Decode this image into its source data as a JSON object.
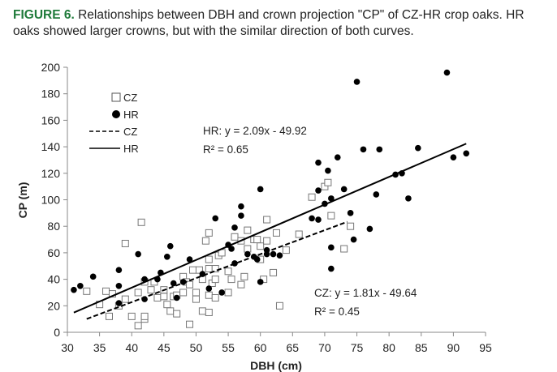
{
  "caption": {
    "label": "FIGURE 6.",
    "text": "Relationships between DBH and crown projection \"CP\" of CZ-HR crop oaks. HR oaks showed larger crowns, but with the similar direction of both curves."
  },
  "chart_data": {
    "type": "scatter",
    "xlabel": "DBH (cm)",
    "ylabel": "CP (m)",
    "xlim": [
      30,
      95
    ],
    "ylim": [
      0,
      200
    ],
    "xticks": [
      30,
      35,
      40,
      45,
      50,
      55,
      60,
      65,
      70,
      75,
      80,
      85,
      90,
      95
    ],
    "yticks": [
      0,
      20,
      40,
      60,
      80,
      100,
      120,
      140,
      160,
      180,
      200
    ],
    "grid": false,
    "legend_placement": "top-left",
    "legend": [
      "CZ",
      "HR",
      "CZ",
      "HR"
    ],
    "series": [
      {
        "name": "CZ",
        "marker": "open-square",
        "points": [
          [
            33,
            31
          ],
          [
            35,
            21
          ],
          [
            36,
            31
          ],
          [
            36.5,
            12
          ],
          [
            37,
            29
          ],
          [
            38,
            20
          ],
          [
            39,
            25
          ],
          [
            39,
            67
          ],
          [
            40,
            12
          ],
          [
            41,
            5
          ],
          [
            41,
            30
          ],
          [
            41.5,
            83
          ],
          [
            42,
            10
          ],
          [
            42,
            38
          ],
          [
            42,
            12
          ],
          [
            43,
            32
          ],
          [
            43.5,
            38
          ],
          [
            44,
            26
          ],
          [
            45,
            27
          ],
          [
            45,
            32
          ],
          [
            45.5,
            21
          ],
          [
            46,
            16
          ],
          [
            46.5,
            27
          ],
          [
            47,
            14
          ],
          [
            47,
            28
          ],
          [
            48,
            30
          ],
          [
            48,
            42
          ],
          [
            48.5,
            38
          ],
          [
            49,
            6
          ],
          [
            49,
            36
          ],
          [
            49.5,
            47
          ],
          [
            50,
            30
          ],
          [
            50,
            25
          ],
          [
            50.5,
            47
          ],
          [
            51,
            40
          ],
          [
            51,
            16
          ],
          [
            51.5,
            69
          ],
          [
            52,
            75
          ],
          [
            52,
            48
          ],
          [
            52,
            55
          ],
          [
            52,
            28
          ],
          [
            52,
            15
          ],
          [
            52.5,
            37
          ],
          [
            53,
            48
          ],
          [
            53,
            26
          ],
          [
            53,
            40
          ],
          [
            53.5,
            58
          ],
          [
            54,
            60
          ],
          [
            55,
            46
          ],
          [
            55,
            30
          ],
          [
            55.5,
            40
          ],
          [
            56,
            72
          ],
          [
            57,
            69
          ],
          [
            57,
            36
          ],
          [
            57.5,
            42
          ],
          [
            58,
            77
          ],
          [
            58,
            63
          ],
          [
            59,
            70
          ],
          [
            59.5,
            70
          ],
          [
            60,
            55
          ],
          [
            60,
            65
          ],
          [
            60.5,
            40
          ],
          [
            61,
            85
          ],
          [
            61,
            69
          ],
          [
            62,
            45
          ],
          [
            62.5,
            75
          ],
          [
            63,
            20
          ],
          [
            64,
            62
          ],
          [
            66,
            74
          ],
          [
            68,
            102
          ],
          [
            70,
            110
          ],
          [
            70.5,
            113
          ],
          [
            71,
            88
          ],
          [
            73,
            63
          ],
          [
            74,
            80
          ]
        ]
      },
      {
        "name": "HR",
        "marker": "filled-circle",
        "points": [
          [
            31,
            32
          ],
          [
            32,
            35
          ],
          [
            34,
            42
          ],
          [
            38,
            22
          ],
          [
            38,
            35
          ],
          [
            38,
            47
          ],
          [
            41,
            59
          ],
          [
            42,
            40
          ],
          [
            42,
            25
          ],
          [
            44,
            40
          ],
          [
            44.5,
            45
          ],
          [
            45.5,
            57
          ],
          [
            46,
            65
          ],
          [
            46.5,
            37
          ],
          [
            47,
            26
          ],
          [
            48,
            38
          ],
          [
            49,
            55
          ],
          [
            51,
            44
          ],
          [
            52,
            33
          ],
          [
            53,
            86
          ],
          [
            54,
            30
          ],
          [
            55,
            66
          ],
          [
            55.5,
            63
          ],
          [
            56,
            52
          ],
          [
            56,
            79
          ],
          [
            57,
            95
          ],
          [
            57,
            88
          ],
          [
            58,
            59
          ],
          [
            59,
            57
          ],
          [
            59.5,
            55
          ],
          [
            60,
            108
          ],
          [
            60,
            38
          ],
          [
            61,
            62
          ],
          [
            61,
            59
          ],
          [
            62,
            59
          ],
          [
            63,
            58
          ],
          [
            68,
            86
          ],
          [
            69,
            85
          ],
          [
            69,
            107
          ],
          [
            69,
            128
          ],
          [
            70,
            97
          ],
          [
            70.5,
            122
          ],
          [
            71,
            101
          ],
          [
            71,
            64
          ],
          [
            71,
            48
          ],
          [
            72,
            132
          ],
          [
            73,
            108
          ],
          [
            74,
            90
          ],
          [
            74.5,
            70
          ],
          [
            75,
            189
          ],
          [
            76,
            138
          ],
          [
            77,
            78
          ],
          [
            78,
            104
          ],
          [
            78.5,
            138
          ],
          [
            81,
            119
          ],
          [
            82,
            120
          ],
          [
            83,
            101
          ],
          [
            84.5,
            139
          ],
          [
            89,
            196
          ],
          [
            90,
            132
          ],
          [
            92,
            135
          ]
        ]
      }
    ],
    "trendlines": [
      {
        "name": "CZ",
        "style": "dashed",
        "slope": 1.81,
        "intercept": -49.64,
        "x_range": [
          33,
          73.5
        ],
        "equation": "CZ: y = 1.81x - 49.64",
        "r2": "R² = 0.45"
      },
      {
        "name": "HR",
        "style": "solid",
        "slope": 2.09,
        "intercept": -49.92,
        "x_range": [
          31,
          92
        ],
        "equation": "HR: y = 2.09x - 49.92",
        "r2": "R² = 0.65"
      }
    ]
  }
}
